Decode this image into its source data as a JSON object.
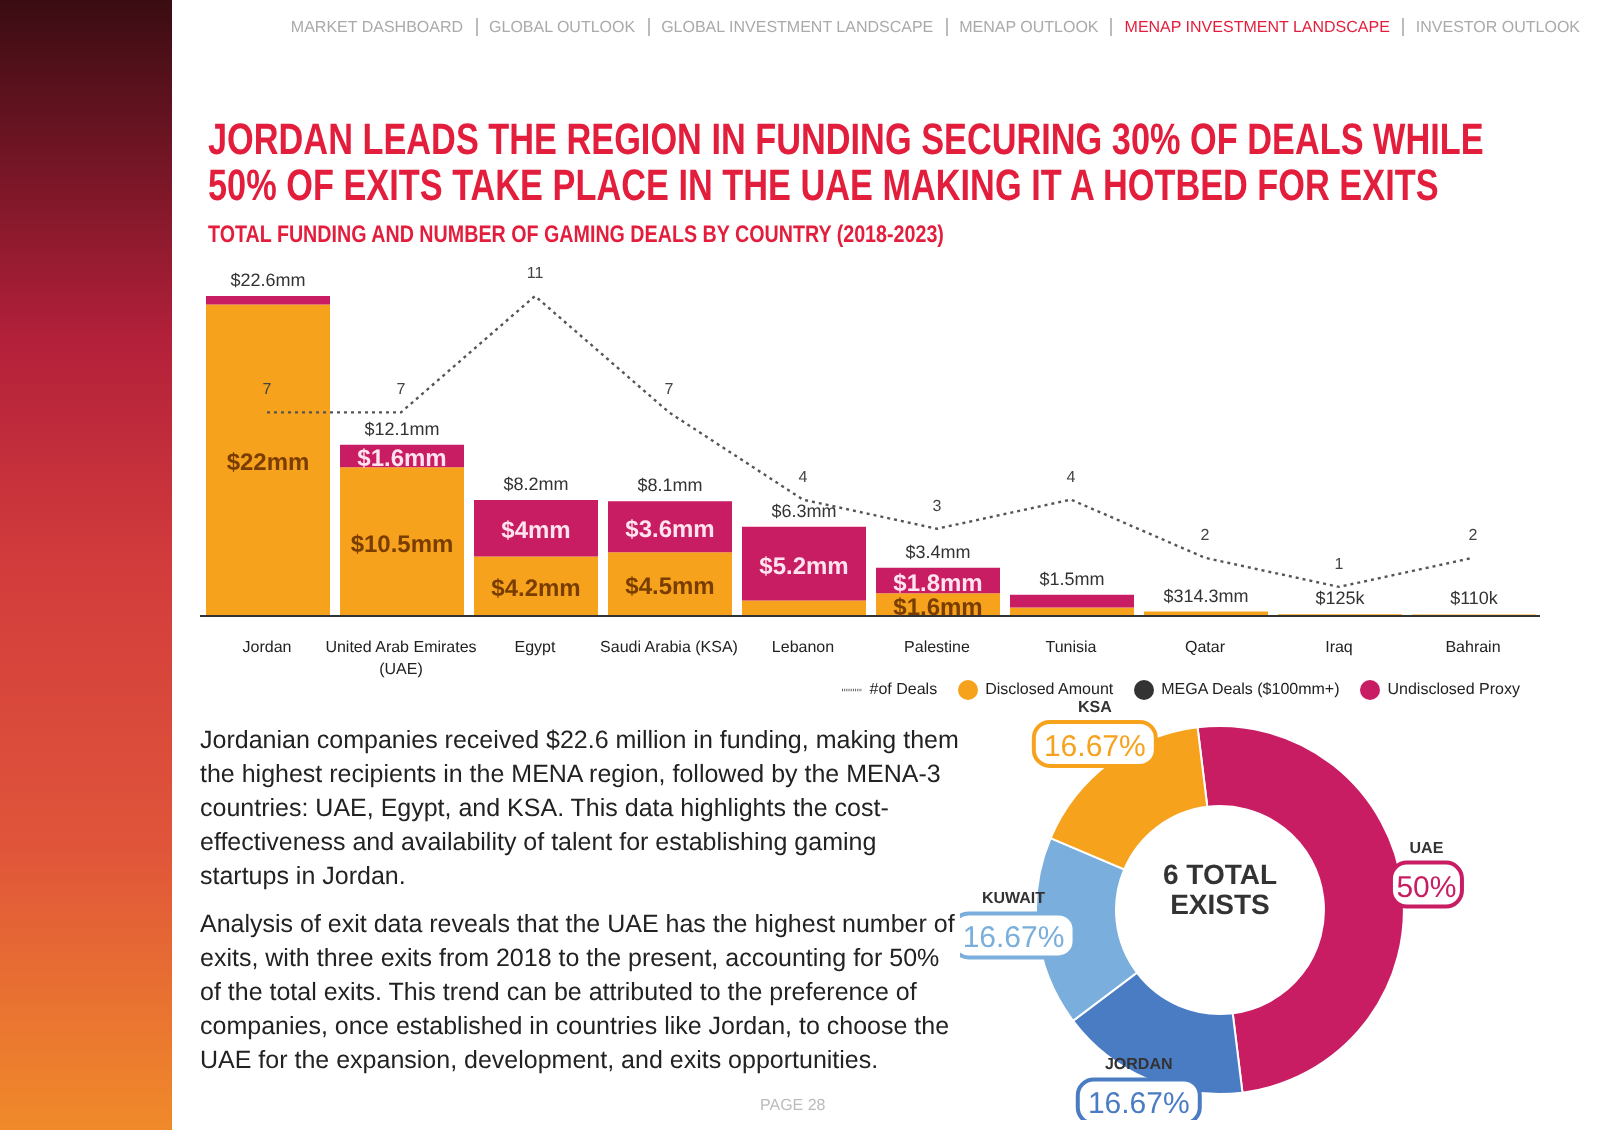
{
  "chart_data": [
    {
      "type": "bar",
      "title": "JORDAN LEADS THE REGION IN FUNDING SECURING 30% OF DEALS WHILE 50% OF EXITS TAKE PLACE IN THE UAE MAKING IT A HOTBED FOR EXITS",
      "subtitle": "TOTAL FUNDING AND NUMBER OF GAMING DEALS BY COUNTRY (2018-2023)",
      "categories": [
        "Jordan",
        "United Arab Emirates (UAE)",
        "Egypt",
        "Saudi Arabia (KSA)",
        "Lebanon",
        "Palestine",
        "Tunisia",
        "Qatar",
        "Iraq",
        "Bahrain"
      ],
      "stacked": true,
      "tick_labels": "x",
      "legend": "bottom",
      "grid": false,
      "series": [
        {
          "name": "Disclosed Amount",
          "type": "bar",
          "color": "#f6a21c",
          "values": [
            22,
            10.5,
            4.2,
            4.5,
            1.1,
            1.6,
            0.6,
            0.3143,
            0.125,
            0.11
          ],
          "value_labels": [
            "$22mm",
            "$10.5mm",
            "$4.2mm",
            "$4.5mm",
            null,
            "$1.6mm",
            null,
            null,
            null,
            null
          ]
        },
        {
          "name": "Undisclosed Proxy",
          "type": "bar",
          "color": "#c81d63",
          "values": [
            0.6,
            1.6,
            4,
            3.6,
            5.2,
            1.8,
            0.9,
            0,
            0,
            0
          ],
          "value_labels": [
            null,
            "$1.6mm",
            "$4mm",
            "$3.6mm",
            "$5.2mm",
            "$1.8mm",
            null,
            null,
            null,
            null
          ]
        },
        {
          "name": "MEGA Deals ($100mm+)",
          "type": "scatter",
          "color": "#333333",
          "values": [
            null,
            null,
            null,
            null,
            null,
            null,
            null,
            null,
            null,
            null
          ]
        },
        {
          "name": "#of Deals",
          "type": "line",
          "axis": "y2",
          "color": "#555555",
          "line_style": "dotted",
          "marker": "none",
          "values": [
            7,
            7,
            11,
            7,
            4,
            3,
            4,
            2,
            1,
            2
          ],
          "value_labels": [
            "7",
            "7",
            "11",
            "7",
            "4",
            "3",
            "4",
            "2",
            "1",
            "2"
          ]
        }
      ],
      "totals": [
        "$22.6mm",
        "$12.1mm",
        "$8.2mm",
        "$8.1mm",
        "$6.3mm",
        "$3.4mm",
        "$1.5mm",
        "$314.3mm",
        "$125k",
        "$110k"
      ],
      "annotations": [
        "MARKET DASHBOARD",
        "GLOBAL OUTLOOK",
        "GLOBAL INVESTMENT LANDSCAPE",
        "MENAP OUTLOOK",
        "MENAP INVESTMENT LANDSCAPE",
        "INVESTOR OUTLOOK"
      ]
    },
    {
      "type": "donut",
      "categories": [
        "UAE",
        "JORDAN",
        "KUWAIT",
        "KSA"
      ],
      "values": [
        50,
        16.67,
        16.67,
        16.67
      ],
      "colors": [
        "#c81d63",
        "#4a7cc4",
        "#7aaedc",
        "#f6a21c"
      ],
      "value_labels": [
        "50%",
        "16.67%",
        "16.67%",
        "16.67%"
      ],
      "legend": false,
      "annotations": [
        "6 TOTAL EXISTS",
        "Jordanian companies received $22.6 million in funding, making them the highest recipients in the MENA region, followed by the MENA-3 countries: UAE, Egypt, and KSA. This data highlights the cost-effectiveness and availability of talent for establishing gaming startups in Jordan.",
        "Analysis of exit data reveals that the UAE has the highest number of exits, with three exits from 2018 to the present, accounting for 50% of the total exits. This trend can be attributed to the preference of companies, once established in countries like Jordan, to choose the UAE for the expansion, development, and exits opportunities.",
        "PAGE 28"
      ]
    }
  ]
}
